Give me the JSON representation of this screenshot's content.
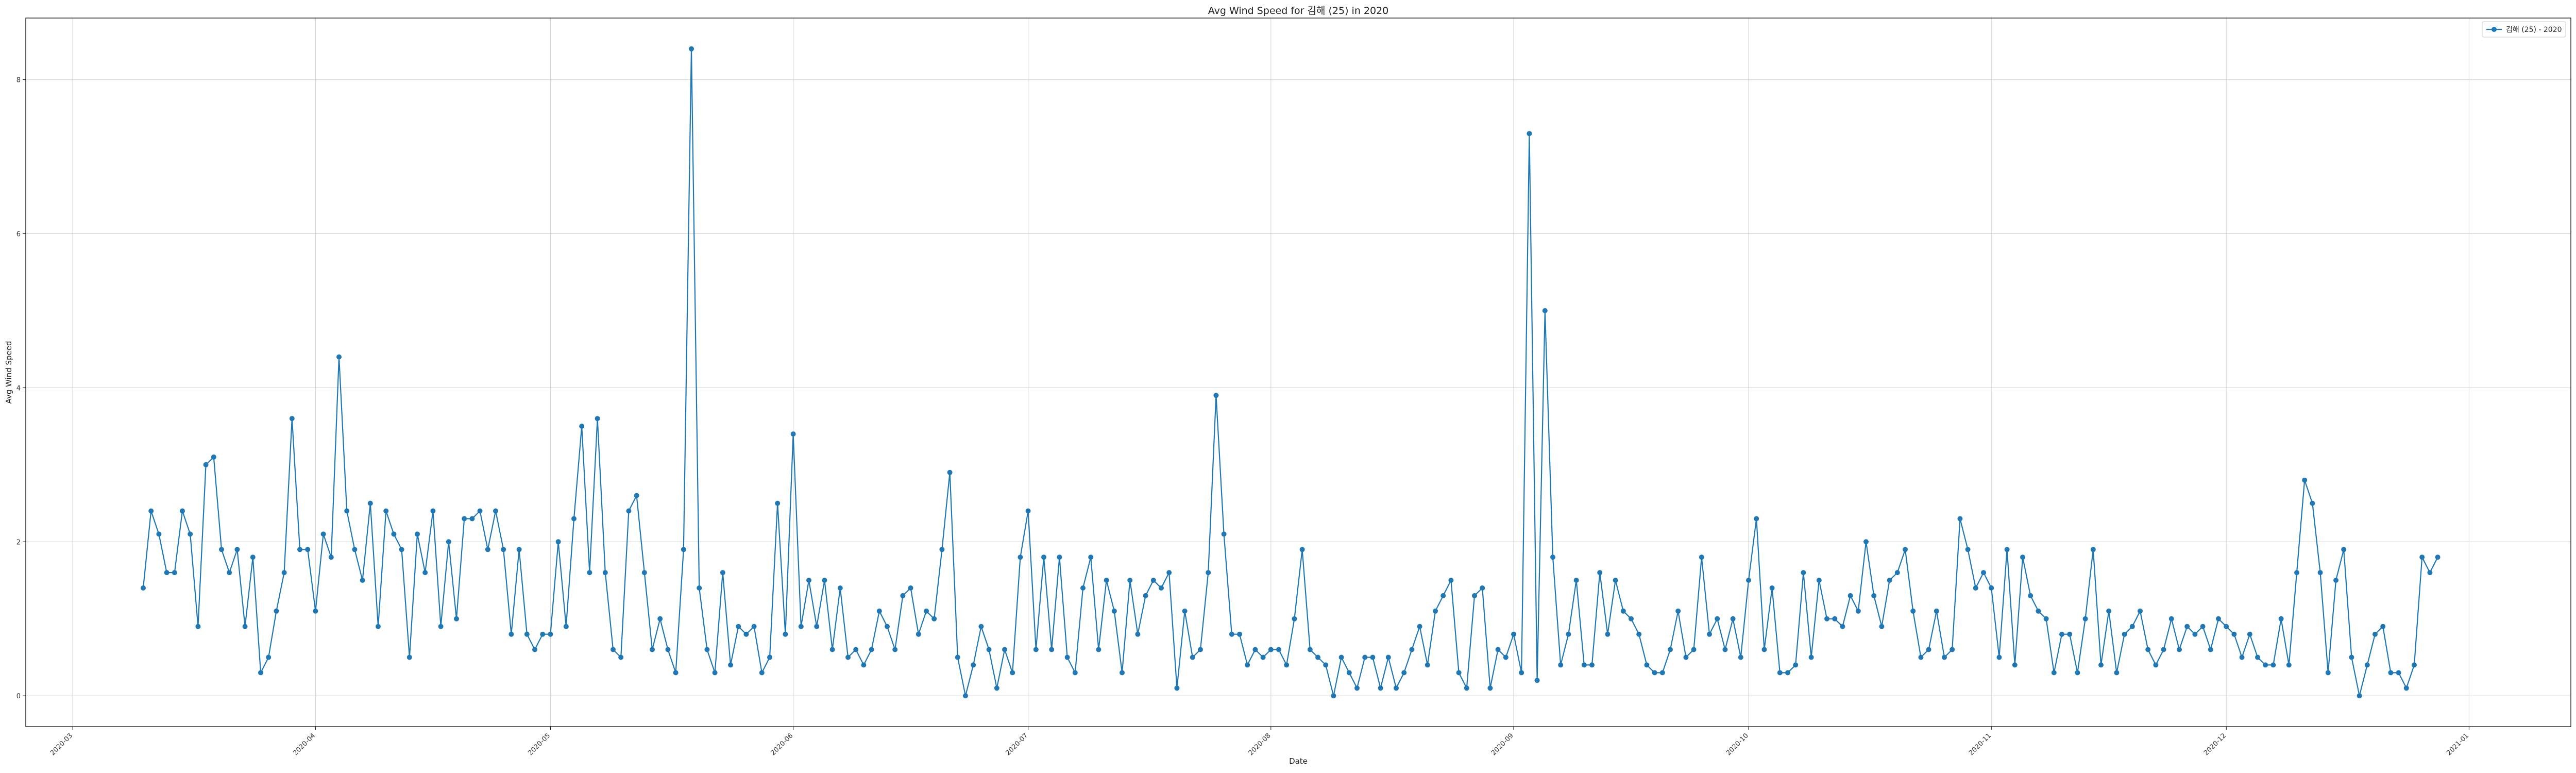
{
  "chart_data": {
    "type": "line",
    "title": "Avg Wind Speed for 김해 (25) in 2020",
    "xlabel": "Date",
    "ylabel": "Avg Wind Speed",
    "xlim": [
      "2020-02-24",
      "2021-01-14"
    ],
    "ylim": [
      -0.4,
      8.8
    ],
    "yticks": [
      0,
      2,
      4,
      6,
      8
    ],
    "xticks": [
      "2020-03",
      "2020-04",
      "2020-05",
      "2020-06",
      "2020-07",
      "2020-08",
      "2020-09",
      "2020-10",
      "2020-11",
      "2020-12",
      "2021-01"
    ],
    "grid": true,
    "legend_position": "top-right",
    "series": [
      {
        "name": "김해 (25) - 2020",
        "color": "#1f77b4",
        "marker": "circle",
        "start": "2020-03-10",
        "values": [
          1.4,
          2.4,
          2.1,
          1.6,
          1.6,
          2.4,
          2.1,
          0.9,
          3.0,
          3.1,
          1.9,
          1.6,
          1.9,
          0.9,
          1.8,
          0.3,
          0.5,
          1.1,
          1.6,
          3.6,
          1.9,
          1.9,
          1.1,
          2.1,
          1.8,
          4.4,
          2.4,
          1.9,
          1.5,
          2.5,
          0.9,
          2.4,
          2.1,
          1.9,
          0.5,
          2.1,
          1.6,
          2.4,
          0.9,
          2.0,
          1.0,
          2.3,
          2.3,
          2.4,
          1.9,
          2.4,
          1.9,
          0.8,
          1.9,
          0.8,
          0.6,
          0.8,
          0.8,
          2.0,
          0.9,
          2.3,
          3.5,
          1.6,
          3.6,
          1.6,
          0.6,
          0.5,
          2.4,
          2.6,
          1.6,
          0.6,
          1.0,
          0.6,
          0.3,
          1.9,
          8.4,
          1.4,
          0.6,
          0.3,
          1.6,
          0.4,
          0.9,
          0.8,
          0.9,
          0.3,
          0.5,
          2.5,
          0.8,
          3.4,
          0.9,
          1.5,
          0.9,
          1.5,
          0.6,
          1.4,
          0.5,
          0.6,
          0.4,
          0.6,
          1.1,
          0.9,
          0.6,
          1.3,
          1.4,
          0.8,
          1.1,
          1.0,
          1.9,
          2.9,
          0.5,
          0.0,
          0.4,
          0.9,
          0.6,
          0.1,
          0.6,
          0.3,
          1.8,
          2.4,
          0.6,
          1.8,
          0.6,
          1.8,
          0.5,
          0.3,
          1.4,
          1.8,
          0.6,
          1.5,
          1.1,
          0.3,
          1.5,
          0.8,
          1.3,
          1.5,
          1.4,
          1.6,
          0.1,
          1.1,
          0.5,
          0.6,
          1.6,
          3.9,
          2.1,
          0.8,
          0.8,
          0.4,
          0.6,
          0.5,
          0.6,
          0.6,
          0.4,
          1.0,
          1.9,
          0.6,
          0.5,
          0.4,
          0.0,
          0.5,
          0.3,
          0.1,
          0.5,
          0.5,
          0.1,
          0.5,
          0.1,
          0.3,
          0.6,
          0.9,
          0.4,
          1.1,
          1.3,
          1.5,
          0.3,
          0.1,
          1.3,
          1.4,
          0.1,
          0.6,
          0.5,
          0.8,
          0.3,
          7.3,
          0.2,
          5.0,
          1.8,
          0.4,
          0.8,
          1.5,
          0.4,
          0.4,
          1.6,
          0.8,
          1.5,
          1.1,
          1.0,
          0.8,
          0.4,
          0.3,
          0.3,
          0.6,
          1.1,
          0.5,
          0.6,
          1.8,
          0.8,
          1.0,
          0.6,
          1.0,
          0.5,
          1.5,
          2.3,
          0.6,
          1.4,
          0.3,
          0.3,
          0.4,
          1.6,
          0.5,
          1.5,
          1.0,
          1.0,
          0.9,
          1.3,
          1.1,
          2.0,
          1.3,
          0.9,
          1.5,
          1.6,
          1.9,
          1.1,
          0.5,
          0.6,
          1.1,
          0.5,
          0.6,
          2.3,
          1.9,
          1.4,
          1.6,
          1.4,
          0.5,
          1.9,
          0.4,
          1.8,
          1.3,
          1.1,
          1.0,
          0.3,
          0.8,
          0.8,
          0.3,
          1.0,
          1.9,
          0.4,
          1.1,
          0.3,
          0.8,
          0.9,
          1.1,
          0.6,
          0.4,
          0.6,
          1.0,
          0.6,
          0.9,
          0.8,
          0.9,
          0.6,
          1.0,
          0.9,
          0.8,
          0.5,
          0.8,
          0.5,
          0.4,
          0.4,
          1.0,
          0.4,
          1.6,
          2.8,
          2.5,
          1.6,
          0.3,
          1.5,
          1.9,
          0.5,
          0.0,
          0.4,
          0.8,
          0.9,
          0.3,
          0.3,
          0.1,
          0.4,
          1.8,
          1.6,
          1.8
        ]
      }
    ]
  }
}
